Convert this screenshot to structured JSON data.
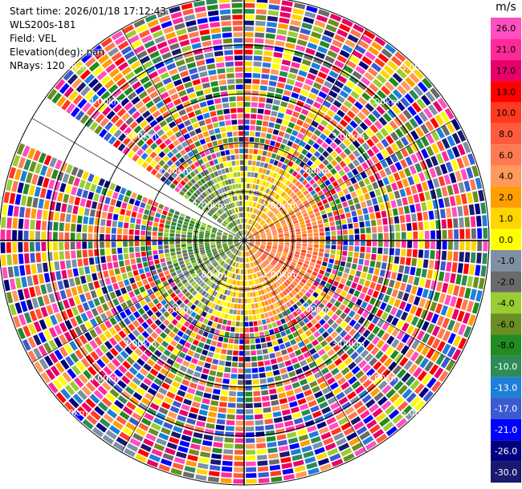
{
  "header": {
    "start_time": "Start time: 2026/01/18 17:12:43",
    "instrument": "WLS200s-181",
    "field": "Field: VEL",
    "elevation": "Elevation(deg): nan",
    "nrays": "NRays: 120"
  },
  "colorbar": {
    "unit": "m/s",
    "ticks": [
      "26.0",
      "21.0",
      "17.0",
      "13.0",
      "10.0",
      "8.0",
      "6.0",
      "4.0",
      "2.0",
      "1.0",
      "0.0",
      "-1.0",
      "-2.0",
      "-4.0",
      "-6.0",
      "-8.0",
      "-10.0",
      "-13.0",
      "-17.0",
      "-21.0",
      "-26.0",
      "-30.0"
    ],
    "colors": [
      "#ff4fc0",
      "#ff2a9a",
      "#e8006a",
      "#ff0000",
      "#ff3a20",
      "#ff5a3c",
      "#ff7a52",
      "#ff9a5a",
      "#ff9e00",
      "#ffd500",
      "#ffff00",
      "#7e90a4",
      "#6a6a6a",
      "#9acd32",
      "#6b8e23",
      "#228b22",
      "#2e8b57",
      "#1e7fd8",
      "#3a5bd0",
      "#0000ff",
      "#000080",
      "#191970"
    ]
  },
  "chart_data": {
    "type": "ppi",
    "title": "",
    "ring_labels": [
      "1.00km",
      "2.00km",
      "3.00km",
      "4.00km",
      "5.00km"
    ],
    "range_km_max": 5.0,
    "n_rays": 120,
    "missing_sector_deg": [
      293,
      305
    ]
  }
}
